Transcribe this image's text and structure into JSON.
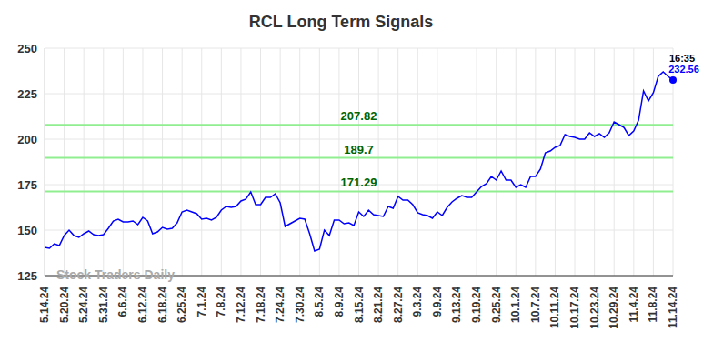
{
  "chart_data": {
    "type": "line",
    "title": "RCL Long Term Signals",
    "watermark": "Stock Traders Daily",
    "categories": [
      "5.14.24",
      null,
      null,
      null,
      "5.20.24",
      null,
      null,
      null,
      "5.24.24",
      null,
      null,
      null,
      "5.31.24",
      null,
      null,
      null,
      "6.6.24",
      null,
      null,
      null,
      "6.12.24",
      null,
      null,
      null,
      "6.18.24",
      null,
      null,
      null,
      "6.25.24",
      null,
      null,
      null,
      "7.1.24",
      null,
      null,
      null,
      "7.8.24",
      null,
      null,
      null,
      "7.12.24",
      null,
      null,
      null,
      "7.18.24",
      null,
      null,
      null,
      "7.24.24",
      null,
      null,
      null,
      "7.30.24",
      null,
      null,
      null,
      "8.5.24",
      null,
      null,
      null,
      "8.9.24",
      null,
      null,
      null,
      "8.15.24",
      null,
      null,
      null,
      "8.21.24",
      null,
      null,
      null,
      "8.27.24",
      null,
      null,
      null,
      "9.3.24",
      null,
      null,
      null,
      "9.9.24",
      null,
      null,
      null,
      "9.13.24",
      null,
      null,
      null,
      "9.19.24",
      null,
      null,
      null,
      "9.25.24",
      null,
      null,
      null,
      "10.1.24",
      null,
      null,
      null,
      "10.7.24",
      null,
      null,
      null,
      "10.11.24",
      null,
      null,
      null,
      "10.17.24",
      null,
      null,
      null,
      "10.23.24",
      null,
      null,
      null,
      "10.29.24",
      null,
      null,
      null,
      "11.4.24",
      null,
      null,
      null,
      "11.8.24",
      null,
      null,
      null,
      "11.14.24"
    ],
    "series": [
      {
        "name": "RCL",
        "color": "#0000ff",
        "values": [
          140.5,
          140,
          142.5,
          141.5,
          147,
          150,
          147,
          146,
          148,
          149.5,
          147.5,
          147,
          147.5,
          151,
          155,
          156,
          154.5,
          154.5,
          155,
          153,
          157,
          155,
          148,
          149,
          151.5,
          150.5,
          151,
          154,
          160,
          161,
          160,
          159,
          156,
          156.5,
          155.5,
          157,
          161,
          163,
          162.5,
          163,
          166,
          167,
          171,
          164,
          164,
          168,
          168,
          170,
          165,
          152,
          153.5,
          155,
          156.5,
          156,
          148,
          138.5,
          139.5,
          150,
          147,
          155.5,
          155.5,
          153.5,
          154,
          152.5,
          160,
          157.5,
          161,
          158.5,
          158,
          157.5,
          163,
          162,
          168.5,
          166.5,
          166.5,
          164,
          159.5,
          158.5,
          158,
          156.5,
          160,
          158,
          162.5,
          165.5,
          167.5,
          169,
          168,
          168,
          171,
          174,
          175.5,
          179.5,
          177.5,
          182.5,
          177.5,
          177.5,
          173.5,
          175,
          173.5,
          179.5,
          179.5,
          183.5,
          192.5,
          193.5,
          195.5,
          196.5,
          202.5,
          201.5,
          201,
          200,
          200,
          203.5,
          201.5,
          203,
          201,
          203.5,
          209.5,
          208,
          206.5,
          202,
          204.5,
          210.5,
          226.5,
          221,
          225.5,
          234.5,
          237,
          234.5,
          232.56
        ]
      }
    ],
    "levels": [
      207.82,
      189.7,
      171.29
    ],
    "annotation": {
      "text": "16:35",
      "value": 232.56
    },
    "ylim": [
      125,
      250
    ],
    "yticks": [
      125,
      150,
      175,
      200,
      225,
      250
    ],
    "grid": true
  }
}
